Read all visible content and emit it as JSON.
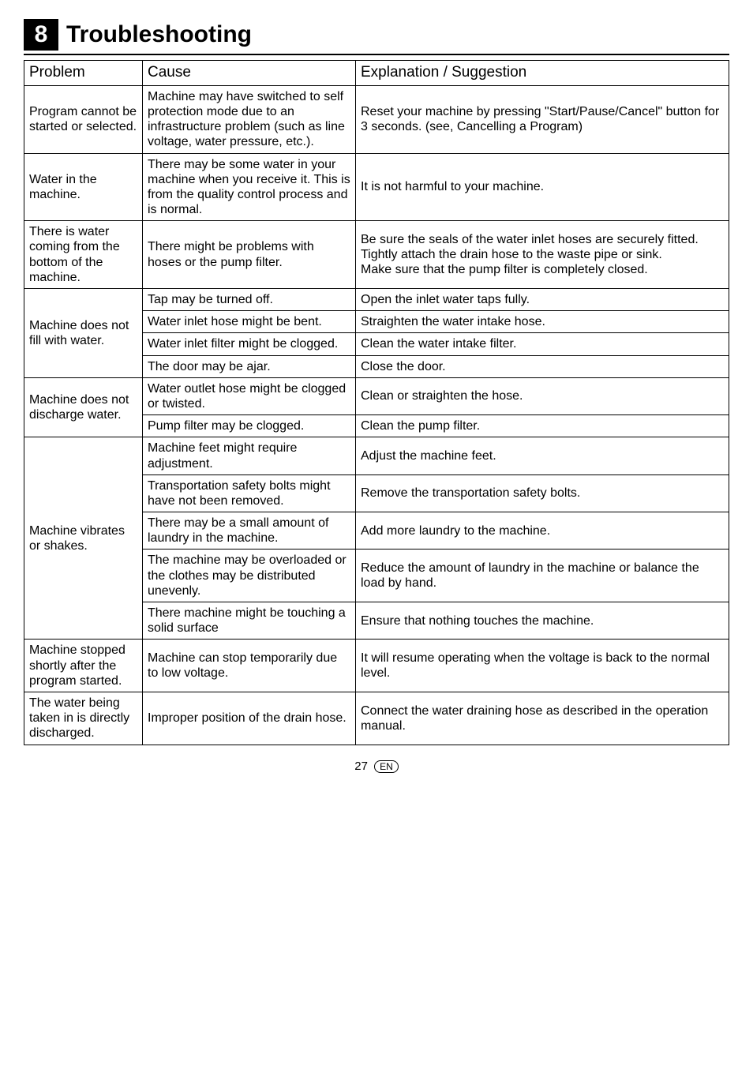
{
  "heading": {
    "number": "8",
    "title": "Troubleshooting"
  },
  "table": {
    "headers": {
      "problem": "Problem",
      "cause": "Cause",
      "explanation": "Explanation / Suggestion"
    },
    "rows": [
      {
        "problem": "Program cannot be started or selected.",
        "cause": "Machine may have switched to self protection mode due to an infrastructure problem (such as line voltage, water pressure, etc.).",
        "explanation": "Reset your machine by pressing \"Start/Pause/Cancel\" button for 3 seconds. (see, Cancelling a Program)"
      },
      {
        "problem": "Water in the machine.",
        "cause": "There may be some water in your machine when you receive it. This is from the quality control process and is normal.",
        "explanation": "It is not harmful to your machine."
      },
      {
        "problem": "There is water coming from the bottom of the machine.",
        "cause": "There might be problems with hoses or the pump filter.",
        "explanation": "Be sure the seals of the water inlet hoses are securely fitted.\nTightly attach the drain hose to the waste pipe or sink.\nMake sure that the pump filter is completely closed."
      },
      {
        "problem_rowspan": 4,
        "problem": "Machine does not fill with water.",
        "cause": "Tap may be turned off.",
        "explanation": "Open the inlet water taps fully."
      },
      {
        "cause": "Water inlet hose might be bent.",
        "explanation": "Straighten the water intake hose."
      },
      {
        "cause": "Water inlet filter might be clogged.",
        "explanation": "Clean the water intake filter."
      },
      {
        "cause": "The door may be ajar.",
        "explanation": "Close the door."
      },
      {
        "problem_rowspan": 2,
        "problem": "Machine does not discharge water.",
        "cause": "Water outlet hose might be clogged or twisted.",
        "explanation": "Clean or straighten the hose."
      },
      {
        "cause": "Pump filter may be clogged.",
        "explanation": "Clean the pump filter."
      },
      {
        "problem_rowspan": 5,
        "problem": "Machine vibrates or shakes.",
        "cause": "Machine feet might require adjustment.",
        "explanation": "Adjust the machine feet."
      },
      {
        "cause": "Transportation safety bolts might have not been removed.",
        "explanation": "Remove the transportation safety bolts."
      },
      {
        "cause": "There may be a small amount of laundry in the machine.",
        "explanation": "Add more laundry to the machine."
      },
      {
        "cause": "The machine may be overloaded or the clothes may be distributed unevenly.",
        "explanation": "Reduce the amount of laundry in the machine or balance the load by hand."
      },
      {
        "cause": "There machine might be touching a solid surface",
        "explanation": "Ensure that nothing touches the machine."
      },
      {
        "problem": "Machine stopped shortly after the program started.",
        "cause": "Machine can stop temporarily due to low voltage.",
        "explanation": "It will resume operating when the voltage is back to the normal level."
      },
      {
        "problem": "The water being taken in is directly discharged.",
        "cause": "Improper position of the drain hose.",
        "explanation": "Connect the water draining hose as described in the operation manual."
      }
    ]
  },
  "footer": {
    "page": "27",
    "lang": "EN"
  }
}
